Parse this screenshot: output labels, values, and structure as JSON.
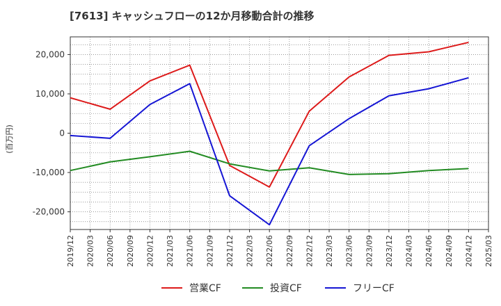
{
  "chart_data": {
    "type": "line",
    "title": "[7613]  キャッシュフローの12か月移動合計の推移",
    "ylabel": "(百万円)",
    "xlabel": "",
    "ylim": [
      -24500,
      24500
    ],
    "grid": true,
    "y_ticks": [
      20000,
      10000,
      0,
      -10000,
      -20000
    ],
    "y_tick_labels": [
      "20,000",
      "10,000",
      "0",
      "-10,000",
      "-20,000"
    ],
    "x_ticks": [
      "2019/12",
      "2020/03",
      "2020/06",
      "2020/09",
      "2020/12",
      "2021/03",
      "2021/06",
      "2021/09",
      "2021/12",
      "2022/03",
      "2022/06",
      "2022/09",
      "2022/12",
      "2023/03",
      "2023/06",
      "2023/09",
      "2023/12",
      "2024/03",
      "2024/06",
      "2024/09",
      "2024/12",
      "2025/03"
    ],
    "legend_position": "bottom",
    "series": [
      {
        "name": "営業CF",
        "color": "#dd1a1a",
        "x": [
          "2019/12",
          "2020/06",
          "2020/12",
          "2021/06",
          "2021/12",
          "2022/06",
          "2022/12",
          "2023/06",
          "2023/12",
          "2024/06",
          "2024/12"
        ],
        "values": [
          9000,
          6100,
          13300,
          17300,
          -8200,
          -13700,
          5600,
          14300,
          19800,
          20700,
          23100
        ]
      },
      {
        "name": "投資CF",
        "color": "#228b22",
        "x": [
          "2019/12",
          "2020/06",
          "2020/12",
          "2021/06",
          "2021/12",
          "2022/06",
          "2022/12",
          "2023/06",
          "2023/12",
          "2024/06",
          "2024/12"
        ],
        "values": [
          -9500,
          -7300,
          -6000,
          -4600,
          -7800,
          -9600,
          -8800,
          -10500,
          -10300,
          -9500,
          -9000
        ]
      },
      {
        "name": "フリーCF",
        "color": "#1515d4",
        "x": [
          "2019/12",
          "2020/06",
          "2020/12",
          "2021/06",
          "2021/12",
          "2022/06",
          "2022/12",
          "2023/06",
          "2023/12",
          "2024/06",
          "2024/12"
        ],
        "values": [
          -600,
          -1300,
          7300,
          12600,
          -15900,
          -23300,
          -3200,
          3700,
          9500,
          11300,
          14100
        ]
      }
    ]
  }
}
